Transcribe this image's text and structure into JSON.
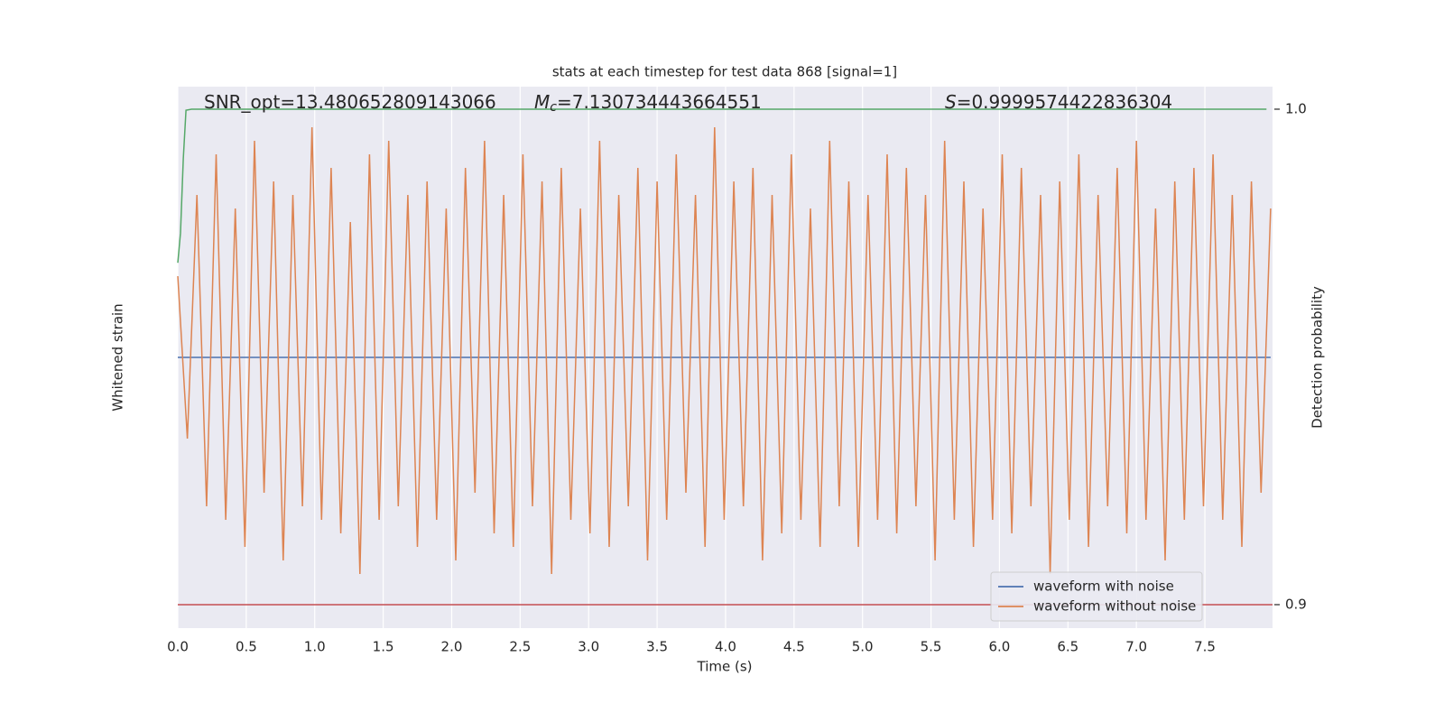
{
  "chart_data": {
    "type": "line",
    "title": "stats at each timestep for test data 868 [signal=1]",
    "x_label": "Time (s)",
    "y_label": "Whitened strain",
    "y2_label": "Detection probability",
    "annotations": [
      {
        "text": "SNR_opt=13.480652809143066"
      },
      {
        "symbol": "M",
        "subscript": "c",
        "text": "=7.130734443664551"
      },
      {
        "symbol": "S",
        "text": "=0.9999574422836304"
      }
    ],
    "xlim": [
      0,
      7.994
    ],
    "xticks": [
      {
        "value": 0,
        "label": "0.0"
      },
      0.5,
      {
        "value": 1,
        "label": "1.0"
      },
      1.5,
      {
        "value": 2,
        "label": "2.0"
      },
      2.5,
      {
        "value": 3,
        "label": "3.0"
      },
      3.5,
      {
        "value": 4,
        "label": "4.0"
      },
      4.5,
      {
        "value": 5,
        "label": "5.0"
      },
      5.5,
      {
        "value": 6,
        "label": "6.0"
      },
      6.5,
      {
        "value": 7,
        "label": "7.0"
      },
      7.5
    ],
    "ylim": [
      -1,
      1
    ],
    "y2lim": [
      0.89526,
      1.00455
    ],
    "y2ticks": [
      {
        "value": 1,
        "label": "1.0"
      },
      0.9
    ],
    "grid": true,
    "legend": "lower right",
    "threshold": {
      "value": 0.9,
      "color": "#c44e52",
      "axis": "y2"
    },
    "series": [
      {
        "name": "waveform with noise",
        "color": "#4c72b0",
        "x": [
          0,
          7.98
        ],
        "values": [
          0,
          0
        ]
      },
      {
        "name": "waveform without noise",
        "color": "#dd8452",
        "x": [
          0,
          0.07,
          0.14,
          0.21,
          0.28,
          0.35,
          0.42,
          0.49,
          0.56,
          0.63,
          0.7,
          0.77,
          0.84,
          0.91,
          0.98,
          1.05,
          1.12,
          1.19,
          1.26,
          1.33,
          1.4,
          1.47,
          1.54,
          1.61,
          1.68,
          1.75,
          1.82,
          1.89,
          1.96,
          2.03,
          2.1,
          2.17,
          2.24,
          2.31,
          2.38,
          2.45,
          2.52,
          2.59,
          2.66,
          2.73,
          2.8,
          2.87,
          2.94,
          3.01,
          3.08,
          3.15,
          3.22,
          3.29,
          3.36,
          3.43,
          3.5,
          3.57,
          3.64,
          3.71,
          3.78,
          3.85,
          3.92,
          3.99,
          4.06,
          4.13,
          4.2,
          4.27,
          4.34,
          4.41,
          4.48,
          4.55,
          4.62,
          4.69,
          4.76,
          4.83,
          4.9,
          4.97,
          5.04,
          5.11,
          5.18,
          5.25,
          5.32,
          5.39,
          5.46,
          5.53,
          5.6,
          5.67,
          5.74,
          5.81,
          5.88,
          5.95,
          6.02,
          6.09,
          6.16,
          6.23,
          6.3,
          6.37,
          6.44,
          6.51,
          6.58,
          6.65,
          6.72,
          6.79,
          6.86,
          6.93,
          7.0,
          7.07,
          7.14,
          7.21,
          7.28,
          7.35,
          7.42,
          7.49,
          7.56,
          7.63,
          7.7,
          7.77,
          7.84,
          7.91,
          7.98
        ],
        "values": [
          0.3,
          -0.3,
          0.6,
          -0.55,
          0.75,
          -0.6,
          0.55,
          -0.7,
          0.8,
          -0.5,
          0.65,
          -0.75,
          0.6,
          -0.55,
          0.85,
          -0.6,
          0.7,
          -0.65,
          0.5,
          -0.8,
          0.75,
          -0.6,
          0.8,
          -0.55,
          0.6,
          -0.7,
          0.65,
          -0.6,
          0.55,
          -0.75,
          0.7,
          -0.5,
          0.8,
          -0.65,
          0.6,
          -0.7,
          0.75,
          -0.55,
          0.65,
          -0.8,
          0.7,
          -0.6,
          0.55,
          -0.65,
          0.8,
          -0.7,
          0.6,
          -0.55,
          0.7,
          -0.75,
          0.65,
          -0.6,
          0.75,
          -0.5,
          0.6,
          -0.7,
          0.85,
          -0.6,
          0.65,
          -0.55,
          0.7,
          -0.75,
          0.6,
          -0.65,
          0.75,
          -0.6,
          0.55,
          -0.7,
          0.8,
          -0.55,
          0.65,
          -0.7,
          0.6,
          -0.6,
          0.75,
          -0.65,
          0.7,
          -0.55,
          0.6,
          -0.75,
          0.8,
          -0.6,
          0.65,
          -0.7,
          0.55,
          -0.6,
          0.75,
          -0.65,
          0.7,
          -0.55,
          0.6,
          -0.8,
          0.65,
          -0.6,
          0.75,
          -0.7,
          0.6,
          -0.55,
          0.7,
          -0.65,
          0.8,
          -0.6,
          0.55,
          -0.75,
          0.65,
          -0.6,
          0.7,
          -0.55,
          0.75,
          -0.6,
          0.6,
          -0.7,
          0.65,
          -0.5,
          0.55
        ]
      },
      {
        "name": "Detection probability",
        "legend": false,
        "color": "#55a868",
        "axis": "y2",
        "x": [
          0,
          0.02,
          0.04,
          0.06,
          0.1,
          7.95
        ],
        "values": [
          0.969,
          0.975,
          0.99,
          0.9998,
          1.0,
          1.0
        ]
      }
    ]
  }
}
